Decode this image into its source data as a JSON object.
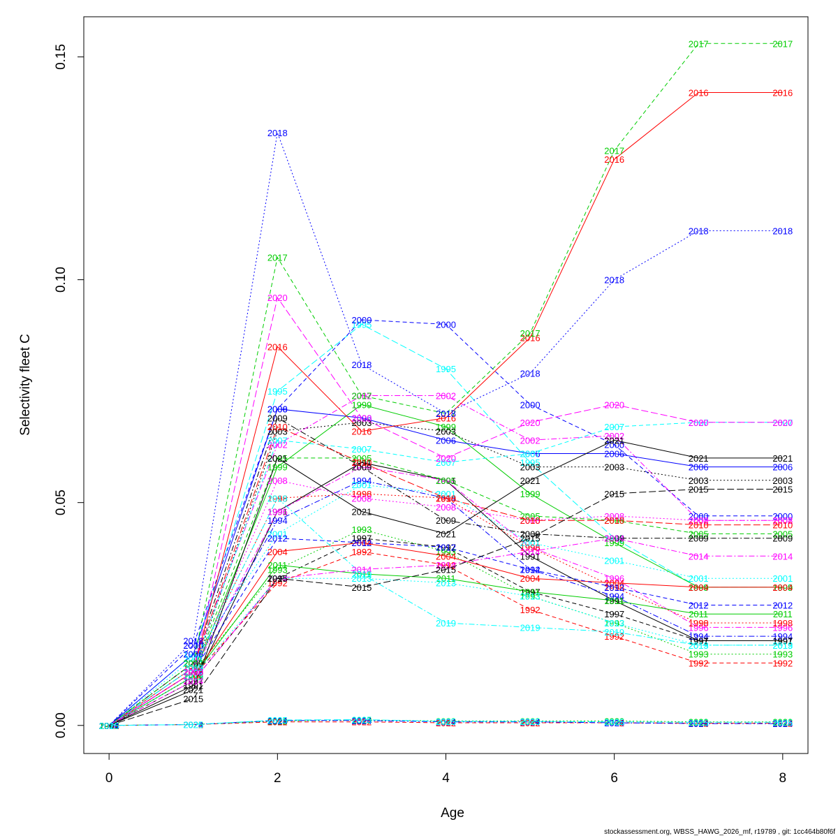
{
  "chart_data": {
    "type": "line",
    "xlabel": "Age",
    "ylabel": "Selectivity fleet C",
    "xlim": [
      -0.3,
      8.3
    ],
    "ylim": [
      -0.0063,
      0.159
    ],
    "x_ticks": [
      "0",
      "2",
      "4",
      "6",
      "8"
    ],
    "y_ticks": [
      "0.00",
      "0.05",
      "0.10",
      "0.15"
    ],
    "ages": [
      0,
      1,
      2,
      3,
      4,
      5,
      6,
      7,
      8
    ],
    "grid": false,
    "legend": "none",
    "series": [
      {
        "name": "1991",
        "color": "#000000",
        "dash": "",
        "values": [
          0,
          0.009,
          0.048,
          0.059,
          0.055,
          0.038,
          0.028,
          0.019,
          0.019
        ]
      },
      {
        "name": "1992",
        "color": "#ff0000",
        "dash": "6,4",
        "values": [
          0,
          0.011,
          0.032,
          0.039,
          0.036,
          0.026,
          0.02,
          0.014,
          0.014
        ]
      },
      {
        "name": "1993",
        "color": "#00cd00",
        "dash": "2,3",
        "values": [
          0,
          0.012,
          0.035,
          0.044,
          0.039,
          0.029,
          0.023,
          0.016,
          0.016
        ]
      },
      {
        "name": "1994",
        "color": "#0000ff",
        "dash": "8,3,2,3",
        "values": [
          0,
          0.013,
          0.046,
          0.055,
          0.051,
          0.035,
          0.029,
          0.02,
          0.02
        ]
      },
      {
        "name": "1995",
        "color": "#00ffff",
        "dash": "10,4",
        "values": [
          0,
          0.016,
          0.075,
          0.09,
          0.08,
          0.059,
          0.042,
          0.031,
          0.031
        ]
      },
      {
        "name": "1996",
        "color": "#ff00ff",
        "dash": "8,3,2,3",
        "values": [
          0,
          0.012,
          0.048,
          0.058,
          0.055,
          0.04,
          0.033,
          0.022,
          0.022
        ]
      },
      {
        "name": "1997",
        "color": "#000000",
        "dash": "6,4",
        "values": [
          0,
          0.01,
          0.033,
          0.042,
          0.04,
          0.03,
          0.025,
          0.019,
          0.019
        ]
      },
      {
        "name": "1998",
        "color": "#ff0000",
        "dash": "2,3",
        "values": [
          0,
          0.013,
          0.051,
          0.052,
          0.051,
          0.04,
          0.031,
          0.023,
          0.023
        ]
      },
      {
        "name": "1999",
        "color": "#00cd00",
        "dash": "",
        "values": [
          0,
          0.011,
          0.058,
          0.072,
          0.067,
          0.052,
          0.041,
          0.031,
          0.031
        ]
      },
      {
        "name": "2000",
        "color": "#0000ff",
        "dash": "6,4",
        "values": [
          0,
          0.018,
          0.071,
          0.091,
          0.09,
          0.072,
          0.063,
          0.047,
          0.047
        ]
      },
      {
        "name": "2001",
        "color": "#00ffff",
        "dash": "2,3",
        "values": [
          0,
          0.015,
          0.043,
          0.054,
          0.052,
          0.041,
          0.037,
          0.033,
          0.033
        ]
      },
      {
        "name": "2002",
        "color": "#ff00ff",
        "dash": "8,3,2,3",
        "values": [
          0,
          0.014,
          0.063,
          0.074,
          0.074,
          0.064,
          0.065,
          0.046,
          0.046
        ]
      },
      {
        "name": "2003",
        "color": "#000000",
        "dash": "2,3",
        "values": [
          0,
          0.012,
          0.066,
          0.068,
          0.066,
          0.058,
          0.058,
          0.055,
          0.055
        ]
      },
      {
        "name": "2004",
        "color": "#ff0000",
        "dash": "",
        "values": [
          0,
          0.011,
          0.039,
          0.041,
          0.038,
          0.033,
          0.032,
          0.031,
          0.031
        ]
      },
      {
        "name": "2005",
        "color": "#00cd00",
        "dash": "6,4",
        "values": [
          0,
          0.012,
          0.06,
          0.06,
          0.055,
          0.047,
          0.046,
          0.043,
          0.043
        ]
      },
      {
        "name": "2006",
        "color": "#0000ff",
        "dash": "",
        "values": [
          0,
          0.016,
          0.071,
          0.069,
          0.064,
          0.061,
          0.061,
          0.058,
          0.058
        ]
      },
      {
        "name": "2007",
        "color": "#00ffff",
        "dash": "6,4",
        "values": [
          0,
          0.013,
          0.064,
          0.062,
          0.059,
          0.061,
          0.067,
          0.068,
          0.068
        ]
      },
      {
        "name": "2008",
        "color": "#ff00ff",
        "dash": "2,3",
        "values": [
          0,
          0.012,
          0.055,
          0.051,
          0.049,
          0.046,
          0.047,
          0.046,
          0.046
        ]
      },
      {
        "name": "2009",
        "color": "#000000",
        "dash": "8,3,2,3",
        "values": [
          0,
          0.014,
          0.069,
          0.058,
          0.046,
          0.043,
          0.042,
          0.042,
          0.042
        ]
      },
      {
        "name": "2010",
        "color": "#ff0000",
        "dash": "10,4",
        "values": [
          0,
          0.013,
          0.067,
          0.059,
          0.051,
          0.046,
          0.046,
          0.045,
          0.045
        ]
      },
      {
        "name": "2011",
        "color": "#00cd00",
        "dash": "",
        "values": [
          0,
          0.011,
          0.036,
          0.034,
          0.033,
          0.03,
          0.028,
          0.025,
          0.025
        ]
      },
      {
        "name": "2012",
        "color": "#0000ff",
        "dash": "6,4",
        "values": [
          0,
          0.012,
          0.042,
          0.041,
          0.04,
          0.035,
          0.031,
          0.027,
          0.027
        ]
      },
      {
        "name": "2013",
        "color": "#00ffff",
        "dash": "2,3",
        "values": [
          0,
          0.011,
          0.033,
          0.033,
          0.032,
          0.029,
          0.023,
          0.018,
          0.018
        ]
      },
      {
        "name": "2014",
        "color": "#ff00ff",
        "dash": "8,3,2,3",
        "values": [
          0,
          0.01,
          0.033,
          0.035,
          0.036,
          0.039,
          0.042,
          0.038,
          0.038
        ]
      },
      {
        "name": "2015",
        "color": "#000000",
        "dash": "10,4",
        "values": [
          0,
          0.006,
          0.033,
          0.031,
          0.035,
          0.042,
          0.052,
          0.053,
          0.053
        ]
      },
      {
        "name": "2016",
        "color": "#ff0000",
        "dash": "",
        "values": [
          0,
          0.012,
          0.085,
          0.066,
          0.069,
          0.087,
          0.127,
          0.142,
          0.142
        ]
      },
      {
        "name": "2017",
        "color": "#00cd00",
        "dash": "6,4",
        "values": [
          0,
          0.014,
          0.105,
          0.074,
          0.07,
          0.088,
          0.129,
          0.153,
          0.153
        ]
      },
      {
        "name": "2018",
        "color": "#0000ff",
        "dash": "2,3",
        "values": [
          0,
          0.019,
          0.133,
          0.081,
          0.07,
          0.079,
          0.1,
          0.111,
          0.111
        ]
      },
      {
        "name": "2019",
        "color": "#00ffff",
        "dash": "8,3,2,3",
        "values": [
          0,
          0.013,
          0.051,
          0.034,
          0.023,
          0.022,
          0.021,
          0.018,
          0.018
        ]
      },
      {
        "name": "2020",
        "color": "#ff00ff",
        "dash": "10,4",
        "values": [
          0,
          0.012,
          0.096,
          0.069,
          0.06,
          0.068,
          0.072,
          0.068,
          0.068
        ]
      },
      {
        "name": "2021",
        "color": "#000000",
        "dash": "",
        "values": [
          0,
          0.008,
          0.06,
          0.048,
          0.043,
          0.055,
          0.064,
          0.06,
          0.06
        ]
      },
      {
        "name": "2022",
        "color": "#ff0000",
        "dash": "6,4",
        "values": [
          0,
          0.0002,
          0.0008,
          0.0008,
          0.0006,
          0.0006,
          0.0006,
          0.0005,
          0.0005
        ]
      },
      {
        "name": "2023",
        "color": "#00cd00",
        "dash": "2,3",
        "values": [
          0,
          0.0002,
          0.001,
          0.0012,
          0.001,
          0.001,
          0.001,
          0.0008,
          0.0008
        ]
      },
      {
        "name": "2024",
        "color": "#0000ff",
        "dash": "8,3,2,3",
        "values": [
          0,
          0.0002,
          0.0011,
          0.0011,
          0.0008,
          0.0008,
          0.0006,
          0.0004,
          0.0004
        ]
      },
      {
        "name": "2025",
        "color": "#00ffff",
        "dash": "10,4",
        "values": [
          0,
          0.0002,
          0.0012,
          0.0013,
          0.0009,
          0.0009,
          0.0008,
          0.0007,
          0.0007
        ]
      }
    ]
  },
  "footer": "stockassessment.org, WBSS_HAWG_2026_mf, r19789 , git: 1cc464b80f6f"
}
